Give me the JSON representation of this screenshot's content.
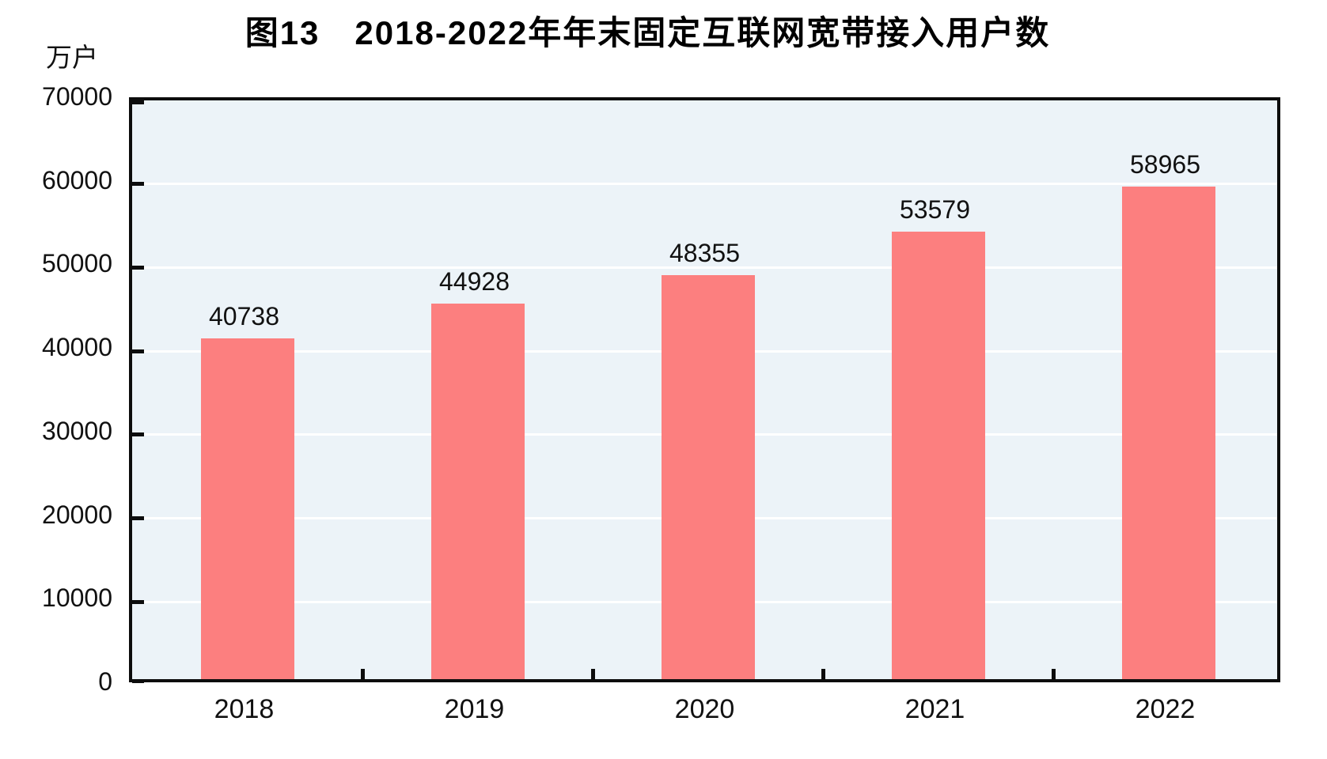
{
  "chart_data": {
    "type": "bar",
    "title": "图13　2018-2022年年末固定互联网宽带接入用户数",
    "unit_label": "万户",
    "categories": [
      "2018",
      "2019",
      "2020",
      "2021",
      "2022"
    ],
    "values": [
      40738,
      44928,
      48355,
      53579,
      58965
    ],
    "series_name": "年末固定互联网宽带接入用户数",
    "ylim": [
      0,
      70000
    ],
    "ytick_step": 10000,
    "yticks": [
      0,
      10000,
      20000,
      30000,
      40000,
      50000,
      60000,
      70000
    ],
    "grid": true,
    "legend_position": "none",
    "colors": {
      "bar": "#FC7F7F",
      "plot_background": "#ECF3F8",
      "gridline": "#FFFFFF",
      "axis": "#0d0d0d",
      "text": "#111111"
    }
  }
}
